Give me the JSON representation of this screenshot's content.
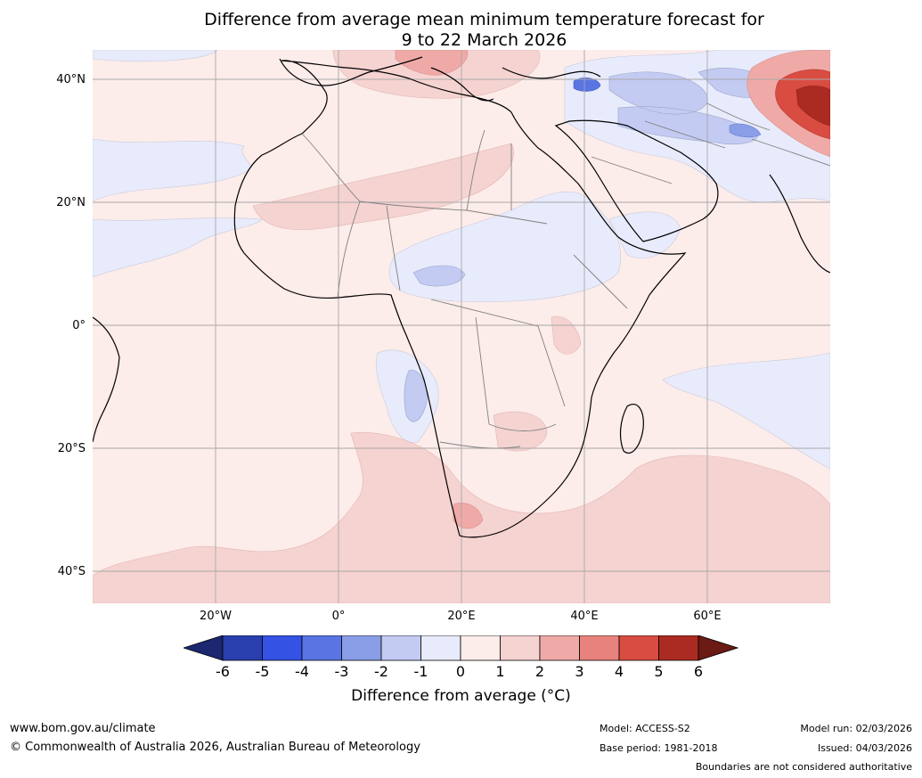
{
  "title": {
    "line1": "Difference from average mean minimum temperature forecast for",
    "line2": "9 to 22 March 2026"
  },
  "map": {
    "lat_labels": [
      "40°N",
      "20°N",
      "0°",
      "20°S",
      "40°S"
    ],
    "lon_labels": [
      "20°W",
      "0°",
      "20°E",
      "40°E",
      "60°E"
    ],
    "lat_range": [
      -45,
      45
    ],
    "lon_range": [
      -40,
      80
    ],
    "features": [
      "cool anomaly over eastern Turkey",
      "cool anomaly over Iran",
      "warm anomaly over Himalaya / Tibet",
      "cool anomaly off Angola",
      "warm anomaly over southern Africa"
    ]
  },
  "colorbar": {
    "ticks": [
      "-6",
      "-5",
      "-4",
      "-3",
      "-2",
      "-1",
      "0",
      "1",
      "2",
      "3",
      "4",
      "5",
      "6"
    ],
    "colors": [
      "#2a3fae",
      "#3452e3",
      "#5a74e3",
      "#8a9ee8",
      "#c3cbf3",
      "#e8ebfb",
      "#fcecea",
      "#f5d3d1",
      "#efaaa7",
      "#e8827d",
      "#d94c42",
      "#ab2b22"
    ],
    "under_color": "#1b276e",
    "over_color": "#6b1a14",
    "label": "Difference from average (°C)"
  },
  "footer": {
    "website": "www.bom.gov.au/climate",
    "copyright": "© Commonwealth of Australia 2026, Australian Bureau of Meteorology",
    "model": "Model: ACCESS-S2",
    "base_period": "Base period: 1981-2018",
    "model_run": "Model run: 02/03/2026",
    "issued": "Issued: 04/03/2026",
    "disclaimer": "Boundaries are not considered authoritative"
  }
}
